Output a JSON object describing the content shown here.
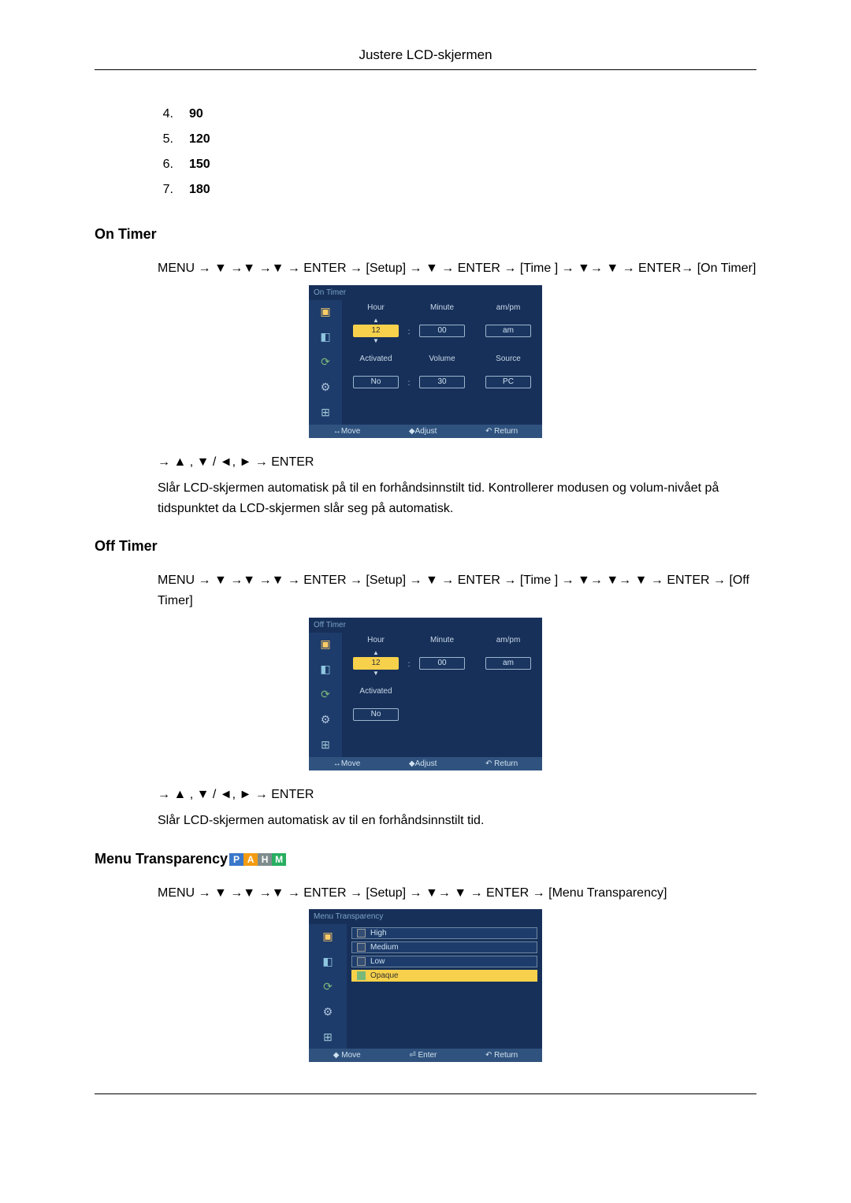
{
  "header": "Justere LCD-skjermen",
  "numbered_list": [
    {
      "n": "4.",
      "v": "90"
    },
    {
      "n": "5.",
      "v": "120"
    },
    {
      "n": "6.",
      "v": "150"
    },
    {
      "n": "7.",
      "v": "180"
    }
  ],
  "on_timer": {
    "title": "On Timer",
    "nav": "MENU → ▼ →▼ →▼ → ENTER → [Setup] → ▼ → ENTER → [Time ] → ▼→ ▼ → ENTER→ [On Timer]",
    "nav2": "→ ▲ , ▼ / ◄, ► → ENTER",
    "desc": "Slår LCD-skjermen automatisk på til en forhåndsinnstilt tid. Kontrollerer modusen og volum-nivået på tidspunktet da LCD-skjermen slår seg på automatisk.",
    "osd": {
      "title": "On Timer",
      "row1": [
        {
          "label": "Hour",
          "value": "12",
          "selected": true,
          "sel_arrows": true
        },
        {
          "label": "Minute",
          "value": "00"
        },
        {
          "label": "am/pm",
          "value": "am"
        }
      ],
      "row2": [
        {
          "label": "Activated",
          "value": "No"
        },
        {
          "label": "Volume",
          "value": "30"
        },
        {
          "label": "Source",
          "value": "PC"
        }
      ],
      "footer": {
        "move": "Move",
        "adjust": "Adjust",
        "ret": "Return"
      }
    }
  },
  "off_timer": {
    "title": "Off Timer",
    "nav": "MENU → ▼ →▼ →▼ → ENTER → [Setup] → ▼ → ENTER → [Time ] → ▼→ ▼→ ▼ → ENTER → [Off Timer]",
    "nav2": "→ ▲ , ▼ / ◄, ► → ENTER",
    "desc": "Slår LCD-skjermen automatisk av til en forhåndsinnstilt tid.",
    "osd": {
      "title": "Off Timer",
      "row1": [
        {
          "label": "Hour",
          "value": "12",
          "selected": true,
          "sel_arrows": true
        },
        {
          "label": "Minute",
          "value": "00"
        },
        {
          "label": "am/pm",
          "value": "am"
        }
      ],
      "row2": [
        {
          "label": "Activated",
          "value": "No"
        }
      ],
      "footer": {
        "move": "Move",
        "adjust": "Adjust",
        "ret": "Return"
      }
    }
  },
  "menu_trans": {
    "title": "Menu Transparency",
    "tags": [
      "P",
      "A",
      "H",
      "M"
    ],
    "nav": "MENU → ▼ →▼ →▼ → ENTER → [Setup] → ▼→ ▼ → ENTER → [Menu Transparency]",
    "osd": {
      "title": "Menu Transparency",
      "items": [
        {
          "label": "High",
          "selected": false
        },
        {
          "label": "Medium",
          "selected": false
        },
        {
          "label": "Low",
          "selected": false
        },
        {
          "label": "Opaque",
          "selected": true
        }
      ],
      "footer": {
        "move": "Move",
        "enter": "Enter",
        "ret": "Return"
      }
    }
  }
}
